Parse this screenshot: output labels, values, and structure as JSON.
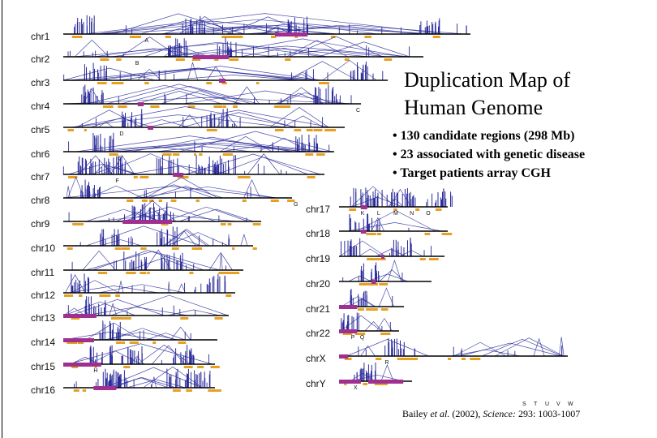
{
  "title": {
    "line1": "Duplication Map of",
    "line2": "Human Genome"
  },
  "bullets": [
    "• 130 candidate regions (298 Mb)",
    "• 23 associated with genetic disease",
    "• Target patients array CGH"
  ],
  "citation": {
    "authors": "Bailey ",
    "etal": "et al.",
    "year": " (2002), ",
    "journal": "Science:",
    "ref": " 293: 1003-1007"
  },
  "colors": {
    "link": "#2a2a9a",
    "duplication": "#a03090",
    "segment": "#e8a020",
    "axis": "#000000"
  },
  "chromosomes": [
    {
      "label": "chr1",
      "letters": [
        "A"
      ]
    },
    {
      "label": "chr2",
      "letters": [
        "B"
      ]
    },
    {
      "label": "chr3",
      "letters": []
    },
    {
      "label": "chr4",
      "letters": [
        "C"
      ]
    },
    {
      "label": "chr5",
      "letters": [
        "D"
      ]
    },
    {
      "label": "chr6",
      "letters": [
        "E"
      ]
    },
    {
      "label": "chr7",
      "letters": [
        "F"
      ]
    },
    {
      "label": "chr8",
      "letters": [
        "G"
      ]
    },
    {
      "label": "chr9",
      "letters": []
    },
    {
      "label": "chr10",
      "letters": []
    },
    {
      "label": "chr11",
      "letters": []
    },
    {
      "label": "chr12",
      "letters": []
    },
    {
      "label": "chr13",
      "letters": []
    },
    {
      "label": "chr14",
      "letters": []
    },
    {
      "label": "chr15",
      "letters": [
        "H"
      ]
    },
    {
      "label": "chr16",
      "letters": []
    },
    {
      "label": "chr17",
      "letters": [
        "K",
        "L",
        "M",
        "N",
        "O"
      ]
    },
    {
      "label": "chr18",
      "letters": []
    },
    {
      "label": "chr19",
      "letters": []
    },
    {
      "label": "chr20",
      "letters": []
    },
    {
      "label": "chr21",
      "letters": []
    },
    {
      "label": "chr22",
      "letters": [
        "P",
        "Q"
      ]
    },
    {
      "label": "chrX",
      "letters": [
        "R"
      ]
    },
    {
      "label": "chrY",
      "letters": [
        "X",
        "S",
        "T",
        "U",
        "V",
        "W"
      ]
    }
  ]
}
